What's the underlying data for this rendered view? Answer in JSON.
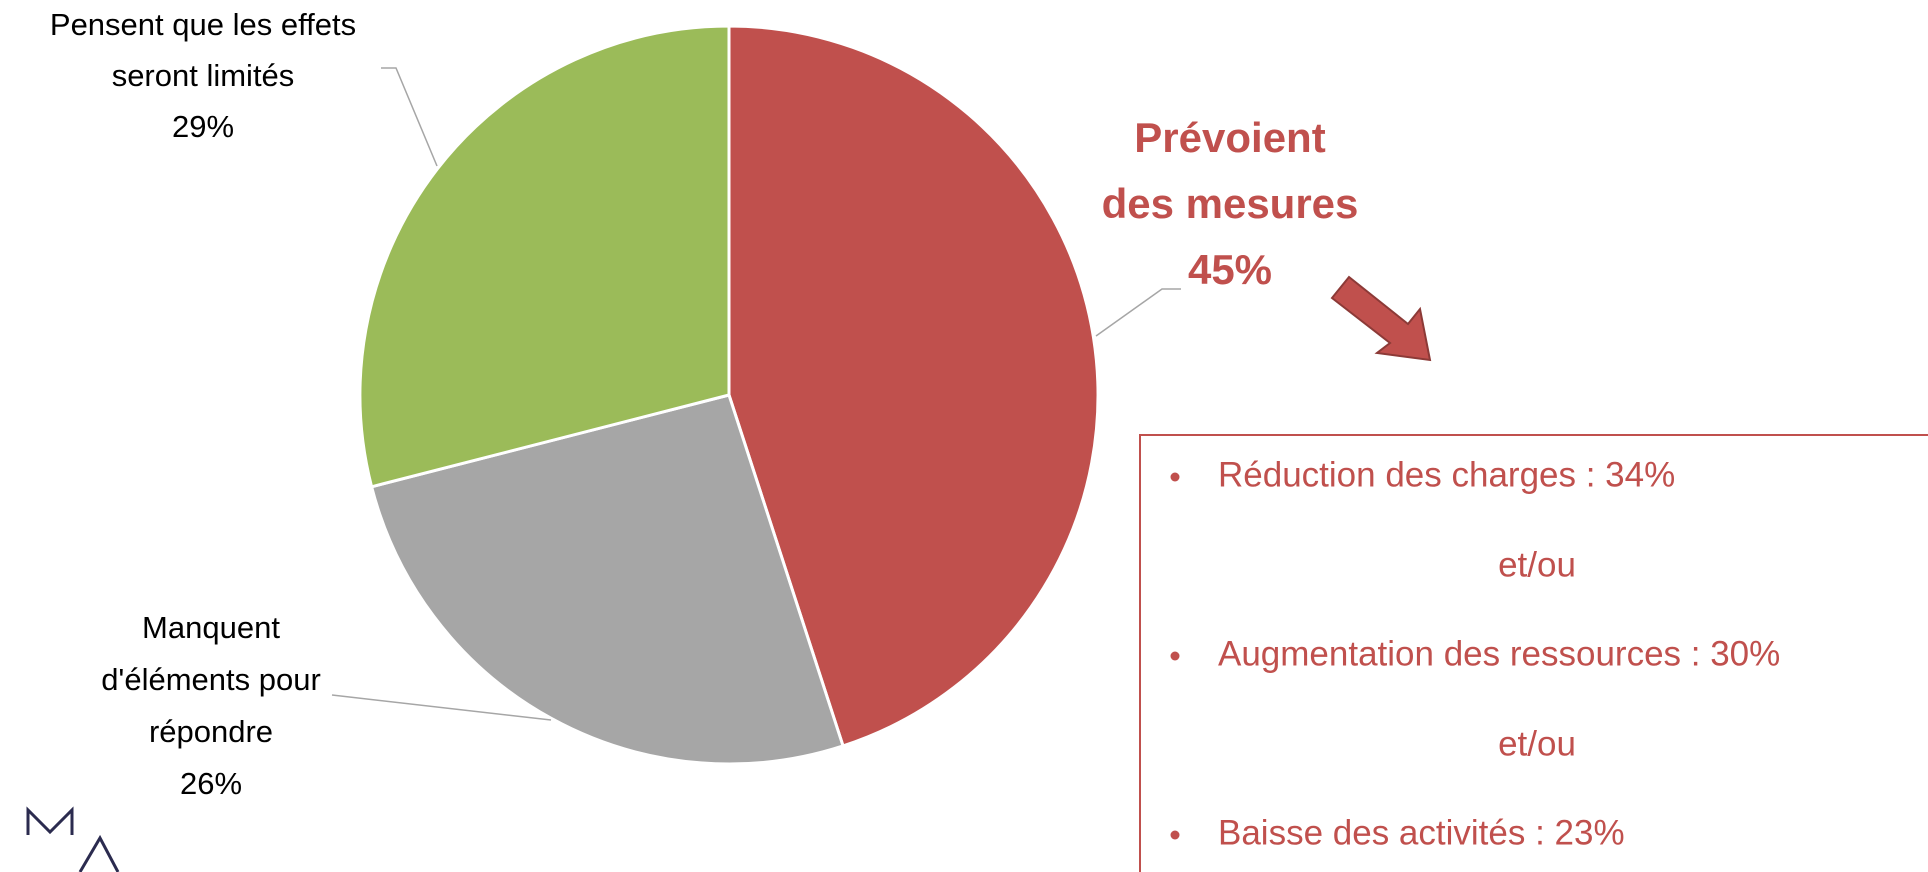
{
  "chart_data": {
    "type": "pie",
    "categories": [
      [
        "Prévoient",
        "des mesures"
      ],
      [
        "Manquent",
        "d'éléments pour",
        "répondre"
      ],
      [
        "Pensent que les effets",
        "seront limités"
      ]
    ],
    "values": [
      45,
      26,
      29
    ],
    "value_labels": [
      "45%",
      "26%",
      "29%"
    ],
    "colors": [
      "#c0504d",
      "#a6a6a6",
      "#9bbb59"
    ],
    "start_angle": 90,
    "direction": "clockwise"
  },
  "note": {
    "items": [
      "Réduction des charges : 34%",
      "Augmentation des ressources : 30%",
      "Baisse des activités : 23%"
    ],
    "separator": "et/ou"
  }
}
